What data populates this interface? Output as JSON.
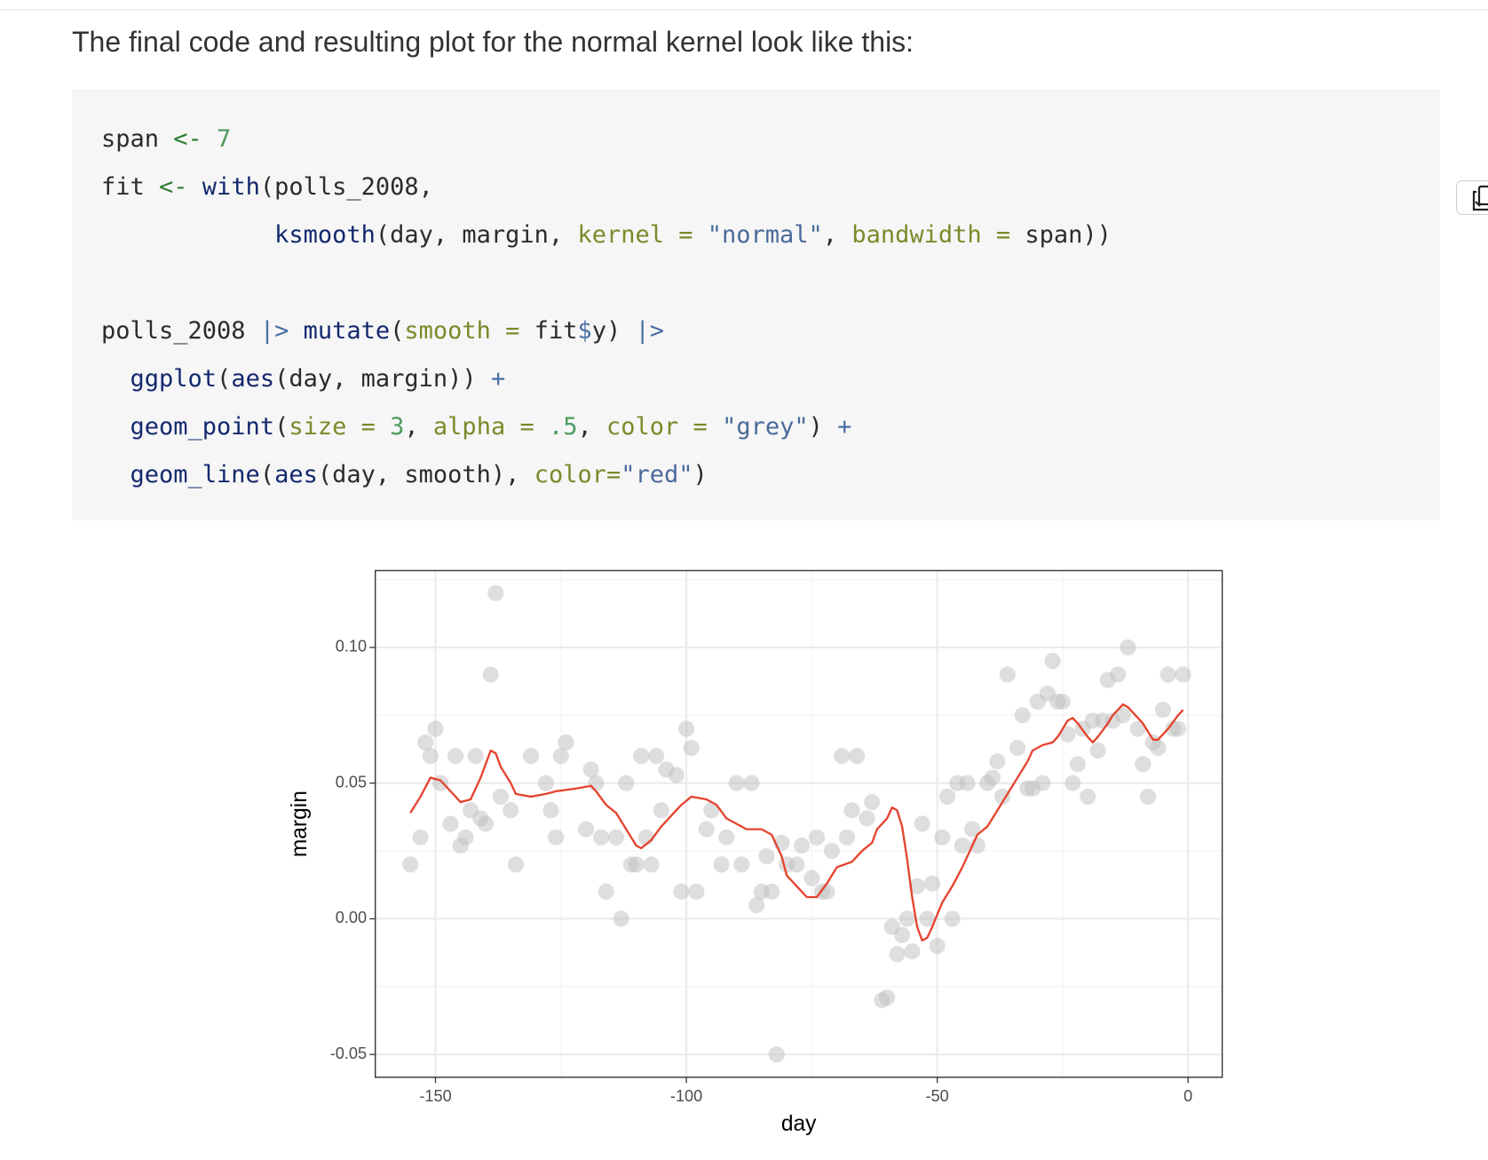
{
  "intro": {
    "text": "The final code and resulting plot for the normal kernel look like this:"
  },
  "code": {
    "blocks": [
      [
        [
          {
            "t": "span ",
            "c": "#2b2b2b"
          },
          {
            "t": "<-",
            "c": "#2f7d32"
          },
          {
            "t": " 7",
            "c": "#4e9a5e"
          }
        ],
        [
          {
            "t": "fit ",
            "c": "#2b2b2b"
          },
          {
            "t": "<-",
            "c": "#2f7d32"
          },
          {
            "t": " with",
            "c": "#14286e"
          },
          {
            "t": "(polls_2008,",
            "c": "#2b2b2b"
          }
        ],
        [
          {
            "t": "            ksmooth",
            "c": "#14286e"
          },
          {
            "t": "(day, margin, ",
            "c": "#2b2b2b"
          },
          {
            "t": "kernel =",
            "c": "#7a8a2a"
          },
          {
            "t": " \"normal\"",
            "c": "#4a6a9a"
          },
          {
            "t": ", ",
            "c": "#2b2b2b"
          },
          {
            "t": "bandwidth =",
            "c": "#7a8a2a"
          },
          {
            "t": " span))",
            "c": "#2b2b2b"
          }
        ]
      ],
      [
        [
          {
            "t": "polls_2008 ",
            "c": "#2b2b2b"
          },
          {
            "t": "|>",
            "c": "#4a6fa5"
          },
          {
            "t": " mutate",
            "c": "#14286e"
          },
          {
            "t": "(",
            "c": "#2b2b2b"
          },
          {
            "t": "smooth =",
            "c": "#7a8a2a"
          },
          {
            "t": " fit",
            "c": "#2b2b2b"
          },
          {
            "t": "$",
            "c": "#4a6fa5"
          },
          {
            "t": "y) ",
            "c": "#2b2b2b"
          },
          {
            "t": "|>",
            "c": "#4a6fa5"
          }
        ],
        [
          {
            "t": "  ggplot",
            "c": "#14286e"
          },
          {
            "t": "(",
            "c": "#2b2b2b"
          },
          {
            "t": "aes",
            "c": "#14286e"
          },
          {
            "t": "(day, margin)) ",
            "c": "#2b2b2b"
          },
          {
            "t": "+",
            "c": "#4a6fa5"
          }
        ],
        [
          {
            "t": "  geom_point",
            "c": "#14286e"
          },
          {
            "t": "(",
            "c": "#2b2b2b"
          },
          {
            "t": "size =",
            "c": "#7a8a2a"
          },
          {
            "t": " 3",
            "c": "#4e9a5e"
          },
          {
            "t": ", ",
            "c": "#2b2b2b"
          },
          {
            "t": "alpha =",
            "c": "#7a8a2a"
          },
          {
            "t": " .5",
            "c": "#4e9a5e"
          },
          {
            "t": ", ",
            "c": "#2b2b2b"
          },
          {
            "t": "color =",
            "c": "#7a8a2a"
          },
          {
            "t": " \"grey\"",
            "c": "#4a6a9a"
          },
          {
            "t": ") ",
            "c": "#2b2b2b"
          },
          {
            "t": "+",
            "c": "#4a6fa5"
          }
        ],
        [
          {
            "t": "  geom_line",
            "c": "#14286e"
          },
          {
            "t": "(",
            "c": "#2b2b2b"
          },
          {
            "t": "aes",
            "c": "#14286e"
          },
          {
            "t": "(day, smooth), ",
            "c": "#2b2b2b"
          },
          {
            "t": "color=",
            "c": "#7a8a2a"
          },
          {
            "t": "\"red\"",
            "c": "#4a6a9a"
          },
          {
            "t": ")",
            "c": "#2b2b2b"
          }
        ]
      ]
    ]
  },
  "chart_data": {
    "type": "scatter",
    "x_label": "day",
    "y_label": "margin",
    "xlim": [
      -162,
      6.8
    ],
    "ylim": [
      -0.0584,
      0.1283
    ],
    "xticks": [
      -150,
      -100,
      -50,
      0
    ],
    "yticks": [
      {
        "value": -0.05,
        "label": "-0.05"
      },
      {
        "value": 0,
        "label": "0.00"
      },
      {
        "value": 0.05,
        "label": "0.05"
      },
      {
        "value": 0.1,
        "label": "0.10"
      }
    ],
    "grid": true,
    "series": [
      {
        "type": "scatter",
        "color": "#bebebe",
        "alpha": 0.5,
        "x": [
          -155,
          -153,
          -152,
          -151,
          -150,
          -149,
          -147,
          -146,
          -145,
          -144,
          -143,
          -142,
          -141,
          -140,
          -139,
          -138,
          -137,
          -135,
          -134,
          -131,
          -128,
          -127,
          -126,
          -125,
          -124,
          -120,
          -119,
          -118,
          -117,
          -116,
          -114,
          -113,
          -112,
          -111,
          -110,
          -109,
          -108,
          -107,
          -106,
          -105,
          -104,
          -102,
          -101,
          -100,
          -99,
          -98,
          -96,
          -95,
          -93,
          -92,
          -90,
          -89,
          -87,
          -86,
          -85,
          -84,
          -83,
          -82,
          -81,
          -80,
          -78,
          -77,
          -75,
          -74,
          -73,
          -72,
          -71,
          -69,
          -68,
          -67,
          -66,
          -64,
          -63,
          -61,
          -60,
          -59,
          -58,
          -57,
          -56,
          -55,
          -54,
          -53,
          -52,
          -51,
          -50,
          -49,
          -48,
          -47,
          -46,
          -45,
          -44,
          -43,
          -42,
          -40,
          -39,
          -38,
          -37,
          -36,
          -34,
          -33,
          -32,
          -31,
          -30,
          -29,
          -28,
          -27,
          -26,
          -25,
          -24,
          -23,
          -22,
          -21,
          -20,
          -19,
          -18,
          -17,
          -16,
          -15,
          -14,
          -13,
          -12,
          -10,
          -9,
          -8,
          -7,
          -6,
          -5,
          -4,
          -3,
          -2,
          -1
        ],
        "values": [
          0.02,
          0.03,
          0.065,
          0.06,
          0.07,
          0.05,
          0.035,
          0.06,
          0.027,
          0.03,
          0.04,
          0.06,
          0.037,
          0.035,
          0.09,
          0.12,
          0.045,
          0.04,
          0.02,
          0.06,
          0.05,
          0.04,
          0.03,
          0.06,
          0.065,
          0.033,
          0.055,
          0.05,
          0.03,
          0.01,
          0.03,
          0,
          0.05,
          0.02,
          0.02,
          0.06,
          0.03,
          0.02,
          0.06,
          0.04,
          0.055,
          0.053,
          0.01,
          0.07,
          0.063,
          0.01,
          0.033,
          0.04,
          0.02,
          0.03,
          0.05,
          0.02,
          0.05,
          0.005,
          0.01,
          0.023,
          0.01,
          -0.05,
          0.028,
          0.02,
          0.02,
          0.027,
          0.015,
          0.03,
          0.01,
          0.01,
          0.025,
          0.06,
          0.03,
          0.04,
          0.06,
          0.037,
          0.043,
          -0.03,
          -0.029,
          -0.003,
          -0.013,
          -0.006,
          0,
          -0.012,
          0.012,
          0.035,
          0,
          0.013,
          -0.01,
          0.03,
          0.045,
          0,
          0.05,
          0.027,
          0.05,
          0.033,
          0.027,
          0.05,
          0.052,
          0.058,
          0.045,
          0.09,
          0.063,
          0.075,
          0.048,
          0.048,
          0.08,
          0.05,
          0.083,
          0.095,
          0.08,
          0.08,
          0.068,
          0.05,
          0.057,
          0.07,
          0.045,
          0.073,
          0.062,
          0.073,
          0.088,
          0.073,
          0.09,
          0.075,
          0.1,
          0.07,
          0.057,
          0.045,
          0.065,
          0.063,
          0.077,
          0.09,
          0.07,
          0.07,
          0.09
        ]
      },
      {
        "type": "line",
        "color": "#e5442f",
        "x": [
          -155,
          -153,
          -151,
          -149,
          -147,
          -145,
          -143,
          -141,
          -139,
          -138,
          -137,
          -135,
          -134,
          -131,
          -128,
          -126,
          -122,
          -119,
          -118,
          -116,
          -114,
          -112,
          -110,
          -109,
          -107,
          -105,
          -103,
          -101,
          -99,
          -96,
          -94,
          -92,
          -90,
          -88,
          -85,
          -83,
          -81,
          -80,
          -78,
          -76,
          -74,
          -72,
          -70,
          -67,
          -65,
          -63,
          -62,
          -60,
          -59,
          -58,
          -57,
          -56,
          -55,
          -54,
          -53,
          -52,
          -51,
          -49,
          -47,
          -45,
          -43,
          -42,
          -40,
          -38,
          -36,
          -34,
          -32,
          -31,
          -29,
          -27,
          -26,
          -24,
          -23,
          -22,
          -20,
          -19,
          -18,
          -16,
          -15,
          -13,
          -12,
          -11,
          -9,
          -7,
          -6,
          -4,
          -2,
          -1
        ],
        "values": [
          0.039,
          0.045,
          0.052,
          0.051,
          0.047,
          0.043,
          0.044,
          0.052,
          0.062,
          0.061,
          0.056,
          0.05,
          0.046,
          0.045,
          0.046,
          0.047,
          0.048,
          0.049,
          0.047,
          0.042,
          0.039,
          0.033,
          0.027,
          0.026,
          0.029,
          0.034,
          0.038,
          0.042,
          0.045,
          0.044,
          0.042,
          0.037,
          0.035,
          0.033,
          0.033,
          0.031,
          0.023,
          0.016,
          0.012,
          0.008,
          0.008,
          0.013,
          0.019,
          0.021,
          0.025,
          0.028,
          0.033,
          0.037,
          0.041,
          0.04,
          0.034,
          0.022,
          0.008,
          -0.003,
          -0.008,
          -0.007,
          -0.003,
          0.006,
          0.012,
          0.019,
          0.027,
          0.031,
          0.034,
          0.04,
          0.046,
          0.052,
          0.058,
          0.062,
          0.064,
          0.065,
          0.067,
          0.073,
          0.074,
          0.072,
          0.067,
          0.065,
          0.067,
          0.072,
          0.075,
          0.079,
          0.078,
          0.076,
          0.072,
          0.066,
          0.066,
          0.07,
          0.075,
          0.077
        ]
      }
    ]
  }
}
